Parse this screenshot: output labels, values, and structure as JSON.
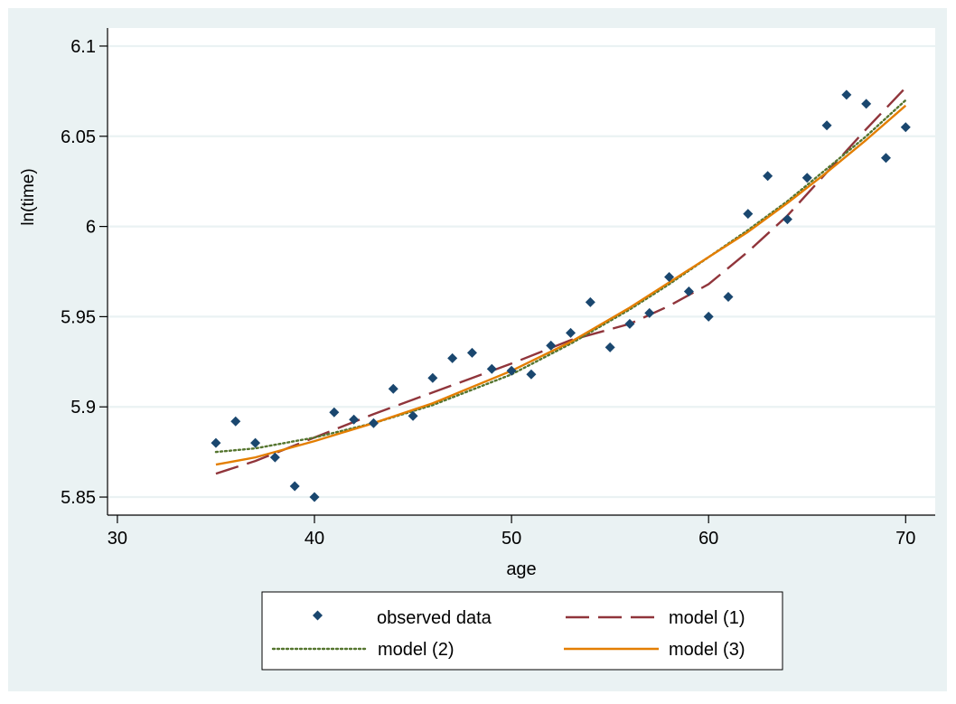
{
  "chart_data": {
    "type": "scatter",
    "title": "",
    "xlabel": "age",
    "ylabel": "ln(time)",
    "xlim": [
      29.5,
      71.5
    ],
    "ylim": [
      5.84,
      6.11
    ],
    "xticks": [
      30,
      40,
      50,
      60,
      70
    ],
    "yticks": [
      5.85,
      5.9,
      5.95,
      6,
      6.05,
      6.1
    ],
    "xtick_labels": [
      "30",
      "40",
      "50",
      "60",
      "70"
    ],
    "ytick_labels": [
      "5.85",
      "5.9",
      "5.95",
      "6",
      "6.05",
      "6.1"
    ],
    "grid": "horizontal",
    "legend_position": "bottom",
    "background_color": "#eaf2f3",
    "series": [
      {
        "name": "observed data",
        "kind": "scatter",
        "marker": "diamond",
        "color": "#1a476f",
        "points": [
          [
            35,
            5.88
          ],
          [
            36,
            5.892
          ],
          [
            37,
            5.88
          ],
          [
            38,
            5.872
          ],
          [
            39,
            5.856
          ],
          [
            40,
            5.85
          ],
          [
            41,
            5.897
          ],
          [
            42,
            5.893
          ],
          [
            43,
            5.891
          ],
          [
            44,
            5.91
          ],
          [
            45,
            5.895
          ],
          [
            46,
            5.916
          ],
          [
            47,
            5.927
          ],
          [
            48,
            5.93
          ],
          [
            49,
            5.921
          ],
          [
            50,
            5.92
          ],
          [
            51,
            5.918
          ],
          [
            52,
            5.934
          ],
          [
            53,
            5.941
          ],
          [
            54,
            5.958
          ],
          [
            55,
            5.933
          ],
          [
            56,
            5.946
          ],
          [
            57,
            5.952
          ],
          [
            58,
            5.972
          ],
          [
            59,
            5.964
          ],
          [
            60,
            5.95
          ],
          [
            61,
            5.961
          ],
          [
            62,
            6.007
          ],
          [
            63,
            6.028
          ],
          [
            64,
            6.004
          ],
          [
            65,
            6.027
          ],
          [
            66,
            6.056
          ],
          [
            67,
            6.073
          ],
          [
            68,
            6.068
          ],
          [
            69,
            6.038
          ],
          [
            70,
            6.055
          ]
        ]
      },
      {
        "name": "model (1)",
        "kind": "line",
        "style": "dashed",
        "color": "#90353b",
        "points": [
          [
            35,
            5.863
          ],
          [
            37,
            5.87
          ],
          [
            40,
            5.883
          ],
          [
            43,
            5.896
          ],
          [
            46,
            5.908
          ],
          [
            50,
            5.924
          ],
          [
            53,
            5.937
          ],
          [
            56,
            5.946
          ],
          [
            58,
            5.956
          ],
          [
            60,
            5.968
          ],
          [
            62,
            5.986
          ],
          [
            64,
            6.006
          ],
          [
            66,
            6.03
          ],
          [
            68,
            6.054
          ],
          [
            70,
            6.077
          ]
        ]
      },
      {
        "name": "model (2)",
        "kind": "line",
        "style": "dotted",
        "color": "#55752f",
        "points": [
          [
            35,
            5.875
          ],
          [
            37,
            5.877
          ],
          [
            40,
            5.883
          ],
          [
            43,
            5.891
          ],
          [
            46,
            5.901
          ],
          [
            50,
            5.918
          ],
          [
            53,
            5.935
          ],
          [
            56,
            5.954
          ],
          [
            58,
            5.968
          ],
          [
            60,
            5.983
          ],
          [
            62,
            5.998
          ],
          [
            64,
            6.014
          ],
          [
            66,
            6.032
          ],
          [
            68,
            6.05
          ],
          [
            70,
            6.07
          ]
        ]
      },
      {
        "name": "model (3)",
        "kind": "line",
        "style": "solid",
        "color": "#e37e00",
        "points": [
          [
            35,
            5.868
          ],
          [
            37,
            5.872
          ],
          [
            40,
            5.881
          ],
          [
            43,
            5.891
          ],
          [
            46,
            5.902
          ],
          [
            50,
            5.92
          ],
          [
            53,
            5.936
          ],
          [
            56,
            5.955
          ],
          [
            58,
            5.969
          ],
          [
            60,
            5.983
          ],
          [
            62,
            5.997
          ],
          [
            64,
            6.013
          ],
          [
            66,
            6.03
          ],
          [
            68,
            6.048
          ],
          [
            70,
            6.067
          ]
        ]
      }
    ]
  }
}
